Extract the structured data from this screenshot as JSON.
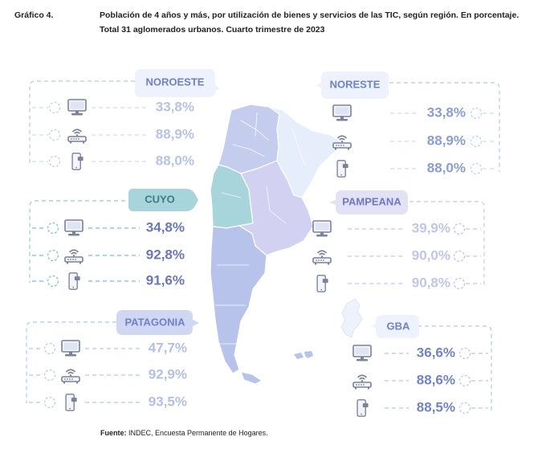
{
  "header": {
    "figure_label": "Gráfico 4.",
    "title_line1": "Población de 4 años y más, por utilización de bienes y servicios de las TIC, según región. En porcentaje.",
    "title_line2": "Total 31 aglomerados urbanos. Cuarto trimestre de 2023"
  },
  "source": {
    "label": "Fuente:",
    "text": "INDEC, Encuesta Permanente de Hogares."
  },
  "colors": {
    "noroeste": "#c5cdef",
    "noreste": "#e6edfb",
    "cuyo": "#a8d4db",
    "pampeana": "#d3d1f1",
    "patagonia": "#b8c3ec",
    "gba": "#eef2fc"
  },
  "icons": [
    "computer-icon",
    "wifi-router-icon",
    "mobile-phone-icon"
  ],
  "chart_data": {
    "type": "table",
    "title": "Población de 4 años y más, por utilización de bienes y servicios de las TIC, según región. En porcentaje.",
    "categories": [
      "Computadora",
      "Internet",
      "Teléfono celular"
    ],
    "unit": "%",
    "regions": [
      {
        "key": "noroeste",
        "name": "NOROESTE",
        "values": [
          "33,8%",
          "88,9%",
          "88,0%"
        ],
        "numeric": [
          33.8,
          88.9,
          88.0
        ]
      },
      {
        "key": "noreste",
        "name": "NORESTE",
        "values": [
          "33,8%",
          "88,9%",
          "88,0%"
        ],
        "numeric": [
          33.8,
          88.9,
          88.0
        ]
      },
      {
        "key": "cuyo",
        "name": "CUYO",
        "values": [
          "34,8%",
          "92,8%",
          "91,6%"
        ],
        "numeric": [
          34.8,
          92.8,
          91.6
        ]
      },
      {
        "key": "pampeana",
        "name": "PAMPEANA",
        "values": [
          "39,9%",
          "90,0%",
          "90,8%"
        ],
        "numeric": [
          39.9,
          90.0,
          90.8
        ]
      },
      {
        "key": "patagonia",
        "name": "PATAGONIA",
        "values": [
          "47,7%",
          "92,9%",
          "93,5%"
        ],
        "numeric": [
          47.7,
          92.9,
          93.5
        ]
      },
      {
        "key": "gba",
        "name": "GBA",
        "values": [
          "36,6%",
          "88,6%",
          "88,5%"
        ],
        "numeric": [
          36.6,
          88.6,
          88.5
        ]
      }
    ]
  }
}
